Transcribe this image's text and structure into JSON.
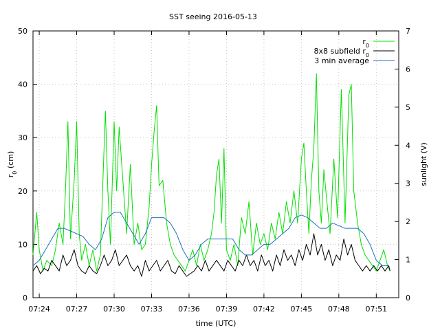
{
  "chart_data": {
    "type": "line",
    "title": "SST seeing 2016-05-13",
    "xlabel": "time (UTC)",
    "ylabel": "r",
    "ylabel_sub": "0",
    "ylabel_unit": " (cm)",
    "y2label": "sunlight (V)",
    "xlim": [
      23.5,
      52.8
    ],
    "ylim": [
      0,
      50
    ],
    "y2lim": [
      0,
      7
    ],
    "grid": true,
    "legend_position": "top-right",
    "x_ticks": [
      {
        "value": 24,
        "label": "07:24"
      },
      {
        "value": 27,
        "label": "07:27"
      },
      {
        "value": 30,
        "label": "07:30"
      },
      {
        "value": 33,
        "label": "07:33"
      },
      {
        "value": 36,
        "label": "07:36"
      },
      {
        "value": 39,
        "label": "07:39"
      },
      {
        "value": 42,
        "label": "07:42"
      },
      {
        "value": 45,
        "label": "07:45"
      },
      {
        "value": 48,
        "label": "07:48"
      },
      {
        "value": 51,
        "label": "07:51"
      }
    ],
    "y_ticks": [
      {
        "value": 0,
        "label": "0"
      },
      {
        "value": 10,
        "label": "10"
      },
      {
        "value": 20,
        "label": "20"
      },
      {
        "value": 30,
        "label": "30"
      },
      {
        "value": 40,
        "label": "40"
      },
      {
        "value": 50,
        "label": "50"
      }
    ],
    "y2_ticks": [
      {
        "value": 0,
        "label": "0"
      },
      {
        "value": 1,
        "label": "1"
      },
      {
        "value": 2,
        "label": "2"
      },
      {
        "value": 3,
        "label": "3"
      },
      {
        "value": 4,
        "label": "4"
      },
      {
        "value": 5,
        "label": "5"
      },
      {
        "value": 6,
        "label": "6"
      },
      {
        "value": 7,
        "label": "7"
      }
    ],
    "series": [
      {
        "name": "r",
        "name_sub": "0",
        "color": "#00e000",
        "axis": "y",
        "points": [
          [
            23.5,
            8
          ],
          [
            23.8,
            16
          ],
          [
            24.0,
            9
          ],
          [
            24.3,
            5
          ],
          [
            24.6,
            7
          ],
          [
            25.0,
            6
          ],
          [
            25.3,
            9
          ],
          [
            25.6,
            14
          ],
          [
            25.9,
            10
          ],
          [
            26.1,
            20
          ],
          [
            26.3,
            33
          ],
          [
            26.5,
            11
          ],
          [
            26.8,
            22
          ],
          [
            27.0,
            33
          ],
          [
            27.2,
            12
          ],
          [
            27.4,
            7
          ],
          [
            27.7,
            10
          ],
          [
            28.0,
            6
          ],
          [
            28.3,
            9
          ],
          [
            28.6,
            5
          ],
          [
            28.9,
            8
          ],
          [
            29.1,
            22
          ],
          [
            29.3,
            35
          ],
          [
            29.5,
            20
          ],
          [
            29.7,
            10
          ],
          [
            30.0,
            33
          ],
          [
            30.2,
            20
          ],
          [
            30.4,
            32
          ],
          [
            30.7,
            22
          ],
          [
            31.0,
            12
          ],
          [
            31.3,
            25
          ],
          [
            31.6,
            10
          ],
          [
            31.9,
            14
          ],
          [
            32.2,
            9
          ],
          [
            32.5,
            10
          ],
          [
            32.8,
            17
          ],
          [
            33.0,
            25
          ],
          [
            33.2,
            31
          ],
          [
            33.4,
            36
          ],
          [
            33.6,
            21
          ],
          [
            33.9,
            22
          ],
          [
            34.2,
            14
          ],
          [
            34.5,
            10
          ],
          [
            34.8,
            8
          ],
          [
            35.1,
            7
          ],
          [
            35.4,
            6
          ],
          [
            35.7,
            5
          ],
          [
            36.0,
            7
          ],
          [
            36.3,
            9
          ],
          [
            36.6,
            6
          ],
          [
            36.9,
            10
          ],
          [
            37.2,
            7
          ],
          [
            37.5,
            9
          ],
          [
            37.8,
            12
          ],
          [
            38.0,
            16
          ],
          [
            38.2,
            23
          ],
          [
            38.4,
            26
          ],
          [
            38.6,
            14
          ],
          [
            38.8,
            28
          ],
          [
            39.0,
            9
          ],
          [
            39.3,
            7
          ],
          [
            39.6,
            10
          ],
          [
            39.9,
            6
          ],
          [
            40.2,
            15
          ],
          [
            40.5,
            12
          ],
          [
            40.8,
            18
          ],
          [
            41.1,
            8
          ],
          [
            41.4,
            14
          ],
          [
            41.7,
            10
          ],
          [
            42.0,
            12
          ],
          [
            42.3,
            9
          ],
          [
            42.6,
            14
          ],
          [
            42.9,
            11
          ],
          [
            43.2,
            16
          ],
          [
            43.5,
            12
          ],
          [
            43.8,
            18
          ],
          [
            44.1,
            14
          ],
          [
            44.4,
            20
          ],
          [
            44.7,
            14
          ],
          [
            45.0,
            26
          ],
          [
            45.2,
            29
          ],
          [
            45.4,
            20
          ],
          [
            45.6,
            12
          ],
          [
            45.8,
            22
          ],
          [
            46.0,
            28
          ],
          [
            46.2,
            42
          ],
          [
            46.4,
            20
          ],
          [
            46.6,
            14
          ],
          [
            46.8,
            24
          ],
          [
            47.0,
            19
          ],
          [
            47.3,
            12
          ],
          [
            47.6,
            26
          ],
          [
            47.9,
            15
          ],
          [
            48.2,
            39
          ],
          [
            48.5,
            14
          ],
          [
            48.8,
            38
          ],
          [
            49.0,
            40
          ],
          [
            49.2,
            20
          ],
          [
            49.5,
            14
          ],
          [
            49.8,
            10
          ],
          [
            50.1,
            8
          ],
          [
            50.4,
            7
          ],
          [
            50.7,
            6
          ],
          [
            51.0,
            5
          ],
          [
            51.3,
            7
          ],
          [
            51.6,
            9
          ],
          [
            51.9,
            6
          ],
          [
            52.1,
            5
          ]
        ]
      },
      {
        "name": "8x8 subfield r",
        "name_sub": "0",
        "color": "#000000",
        "axis": "y",
        "points": [
          [
            23.5,
            5
          ],
          [
            23.8,
            6
          ],
          [
            24.1,
            4.5
          ],
          [
            24.4,
            5.5
          ],
          [
            24.7,
            5
          ],
          [
            25.0,
            7
          ],
          [
            25.3,
            6
          ],
          [
            25.6,
            5
          ],
          [
            25.9,
            8
          ],
          [
            26.2,
            6
          ],
          [
            26.5,
            7
          ],
          [
            26.8,
            9
          ],
          [
            27.1,
            6
          ],
          [
            27.4,
            5
          ],
          [
            27.7,
            4.5
          ],
          [
            28.0,
            6
          ],
          [
            28.3,
            5
          ],
          [
            28.6,
            4.5
          ],
          [
            28.9,
            6
          ],
          [
            29.2,
            8
          ],
          [
            29.5,
            6
          ],
          [
            29.8,
            7
          ],
          [
            30.1,
            9
          ],
          [
            30.4,
            6
          ],
          [
            30.7,
            7
          ],
          [
            31.0,
            8
          ],
          [
            31.3,
            6
          ],
          [
            31.6,
            5
          ],
          [
            31.9,
            6
          ],
          [
            32.2,
            4
          ],
          [
            32.5,
            7
          ],
          [
            32.8,
            5
          ],
          [
            33.1,
            6
          ],
          [
            33.4,
            7
          ],
          [
            33.7,
            5
          ],
          [
            34.0,
            6
          ],
          [
            34.3,
            7
          ],
          [
            34.6,
            5
          ],
          [
            34.9,
            4.5
          ],
          [
            35.2,
            6
          ],
          [
            35.5,
            5
          ],
          [
            35.8,
            4
          ],
          [
            36.1,
            4.5
          ],
          [
            36.4,
            5
          ],
          [
            36.7,
            6
          ],
          [
            37.0,
            5
          ],
          [
            37.3,
            7
          ],
          [
            37.6,
            5
          ],
          [
            37.9,
            6
          ],
          [
            38.2,
            7
          ],
          [
            38.5,
            6
          ],
          [
            38.8,
            5
          ],
          [
            39.1,
            7
          ],
          [
            39.4,
            6
          ],
          [
            39.7,
            5
          ],
          [
            40.0,
            7
          ],
          [
            40.3,
            6
          ],
          [
            40.6,
            8
          ],
          [
            40.9,
            6
          ],
          [
            41.2,
            7
          ],
          [
            41.5,
            5
          ],
          [
            41.8,
            8
          ],
          [
            42.1,
            6
          ],
          [
            42.4,
            7
          ],
          [
            42.7,
            5
          ],
          [
            43.0,
            8
          ],
          [
            43.3,
            6
          ],
          [
            43.6,
            9
          ],
          [
            43.9,
            7
          ],
          [
            44.2,
            8
          ],
          [
            44.5,
            6
          ],
          [
            44.8,
            9
          ],
          [
            45.1,
            7
          ],
          [
            45.4,
            10
          ],
          [
            45.7,
            8
          ],
          [
            46.0,
            12
          ],
          [
            46.3,
            8
          ],
          [
            46.6,
            10
          ],
          [
            46.9,
            7
          ],
          [
            47.2,
            9
          ],
          [
            47.5,
            6
          ],
          [
            47.8,
            8
          ],
          [
            48.1,
            7
          ],
          [
            48.4,
            11
          ],
          [
            48.7,
            8
          ],
          [
            49.0,
            10
          ],
          [
            49.3,
            7
          ],
          [
            49.6,
            6
          ],
          [
            49.9,
            5
          ],
          [
            50.2,
            6
          ],
          [
            50.5,
            5
          ],
          [
            50.8,
            6
          ],
          [
            51.1,
            5
          ],
          [
            51.4,
            6
          ],
          [
            51.7,
            5
          ],
          [
            52.0,
            6
          ],
          [
            52.1,
            5
          ]
        ]
      },
      {
        "name": "3 min average",
        "color": "#1f6fbf",
        "axis": "y",
        "points": [
          [
            23.5,
            6
          ],
          [
            24.0,
            7
          ],
          [
            24.5,
            9
          ],
          [
            25.0,
            11
          ],
          [
            25.5,
            13
          ],
          [
            26.0,
            13
          ],
          [
            26.5,
            12.5
          ],
          [
            27.0,
            12
          ],
          [
            27.5,
            11.5
          ],
          [
            28.0,
            10
          ],
          [
            28.5,
            9
          ],
          [
            29.0,
            11
          ],
          [
            29.5,
            15
          ],
          [
            30.0,
            16
          ],
          [
            30.5,
            16
          ],
          [
            31.0,
            14
          ],
          [
            31.5,
            12
          ],
          [
            32.0,
            10
          ],
          [
            32.5,
            12
          ],
          [
            33.0,
            15
          ],
          [
            33.5,
            15
          ],
          [
            34.0,
            15
          ],
          [
            34.5,
            14
          ],
          [
            35.0,
            12
          ],
          [
            35.5,
            9
          ],
          [
            36.0,
            7
          ],
          [
            36.5,
            8
          ],
          [
            37.0,
            10
          ],
          [
            37.5,
            11
          ],
          [
            38.0,
            11
          ],
          [
            38.5,
            11
          ],
          [
            39.0,
            11
          ],
          [
            39.5,
            11
          ],
          [
            40.0,
            9
          ],
          [
            40.5,
            8
          ],
          [
            41.0,
            8
          ],
          [
            41.5,
            9
          ],
          [
            42.0,
            10
          ],
          [
            42.5,
            10
          ],
          [
            43.0,
            11
          ],
          [
            43.5,
            12
          ],
          [
            44.0,
            13
          ],
          [
            44.5,
            15
          ],
          [
            45.0,
            15.5
          ],
          [
            45.5,
            15
          ],
          [
            46.0,
            14
          ],
          [
            46.5,
            13
          ],
          [
            47.0,
            13
          ],
          [
            47.5,
            14
          ],
          [
            48.0,
            13.5
          ],
          [
            48.5,
            13
          ],
          [
            49.0,
            13
          ],
          [
            49.5,
            13
          ],
          [
            50.0,
            12
          ],
          [
            50.5,
            10
          ],
          [
            51.0,
            7
          ],
          [
            51.5,
            6
          ],
          [
            52.0,
            6
          ]
        ]
      }
    ]
  }
}
